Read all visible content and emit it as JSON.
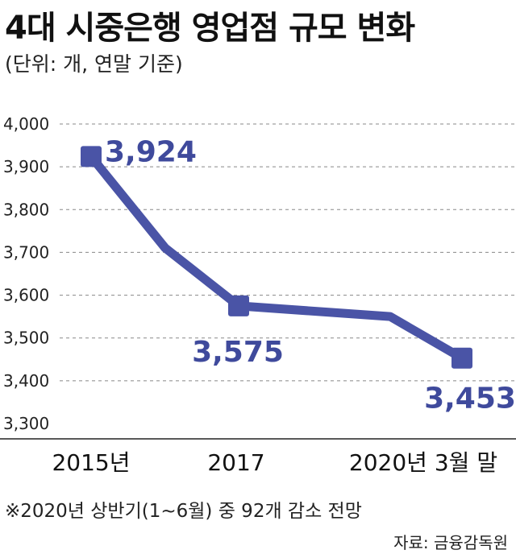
{
  "header": {
    "title": "4대 시중은행 영업점 규모 변화",
    "subtitle": "(단위: 개, 연말 기준)"
  },
  "footer": {
    "note": "※2020년 상반기(1~6월) 중 92개 감소 전망",
    "source": "자료: 금융감독원"
  },
  "colors": {
    "line": "#4a54a6",
    "label": "#3f4a9c",
    "grid": "#888888"
  },
  "chart_data": {
    "type": "line",
    "title": "4대 시중은행 영업점 규모 변화",
    "subtitle": "(단위: 개, 연말 기준)",
    "ylim": [
      3300,
      4000
    ],
    "yticks": [
      "3,300",
      "3,400",
      "3,500",
      "3,600",
      "3,700",
      "3,800",
      "3,900",
      "4,000"
    ],
    "ytick_values": [
      3300,
      3400,
      3500,
      3600,
      3700,
      3800,
      3900,
      4000
    ],
    "grid": "horizontal-dashed",
    "xticks": [
      "2015년",
      "2017",
      "2020년 3월 말"
    ],
    "points": [
      {
        "x": "2015",
        "y": 3924,
        "label": "3,924",
        "marker": true
      },
      {
        "x": "2016",
        "y": 3710,
        "label": "",
        "marker": false
      },
      {
        "x": "2017",
        "y": 3575,
        "label": "3,575",
        "marker": true
      },
      {
        "x": "2019",
        "y": 3550,
        "label": "",
        "marker": false
      },
      {
        "x": "2020년 3월 말",
        "y": 3453,
        "label": "3,453",
        "marker": true
      }
    ]
  }
}
